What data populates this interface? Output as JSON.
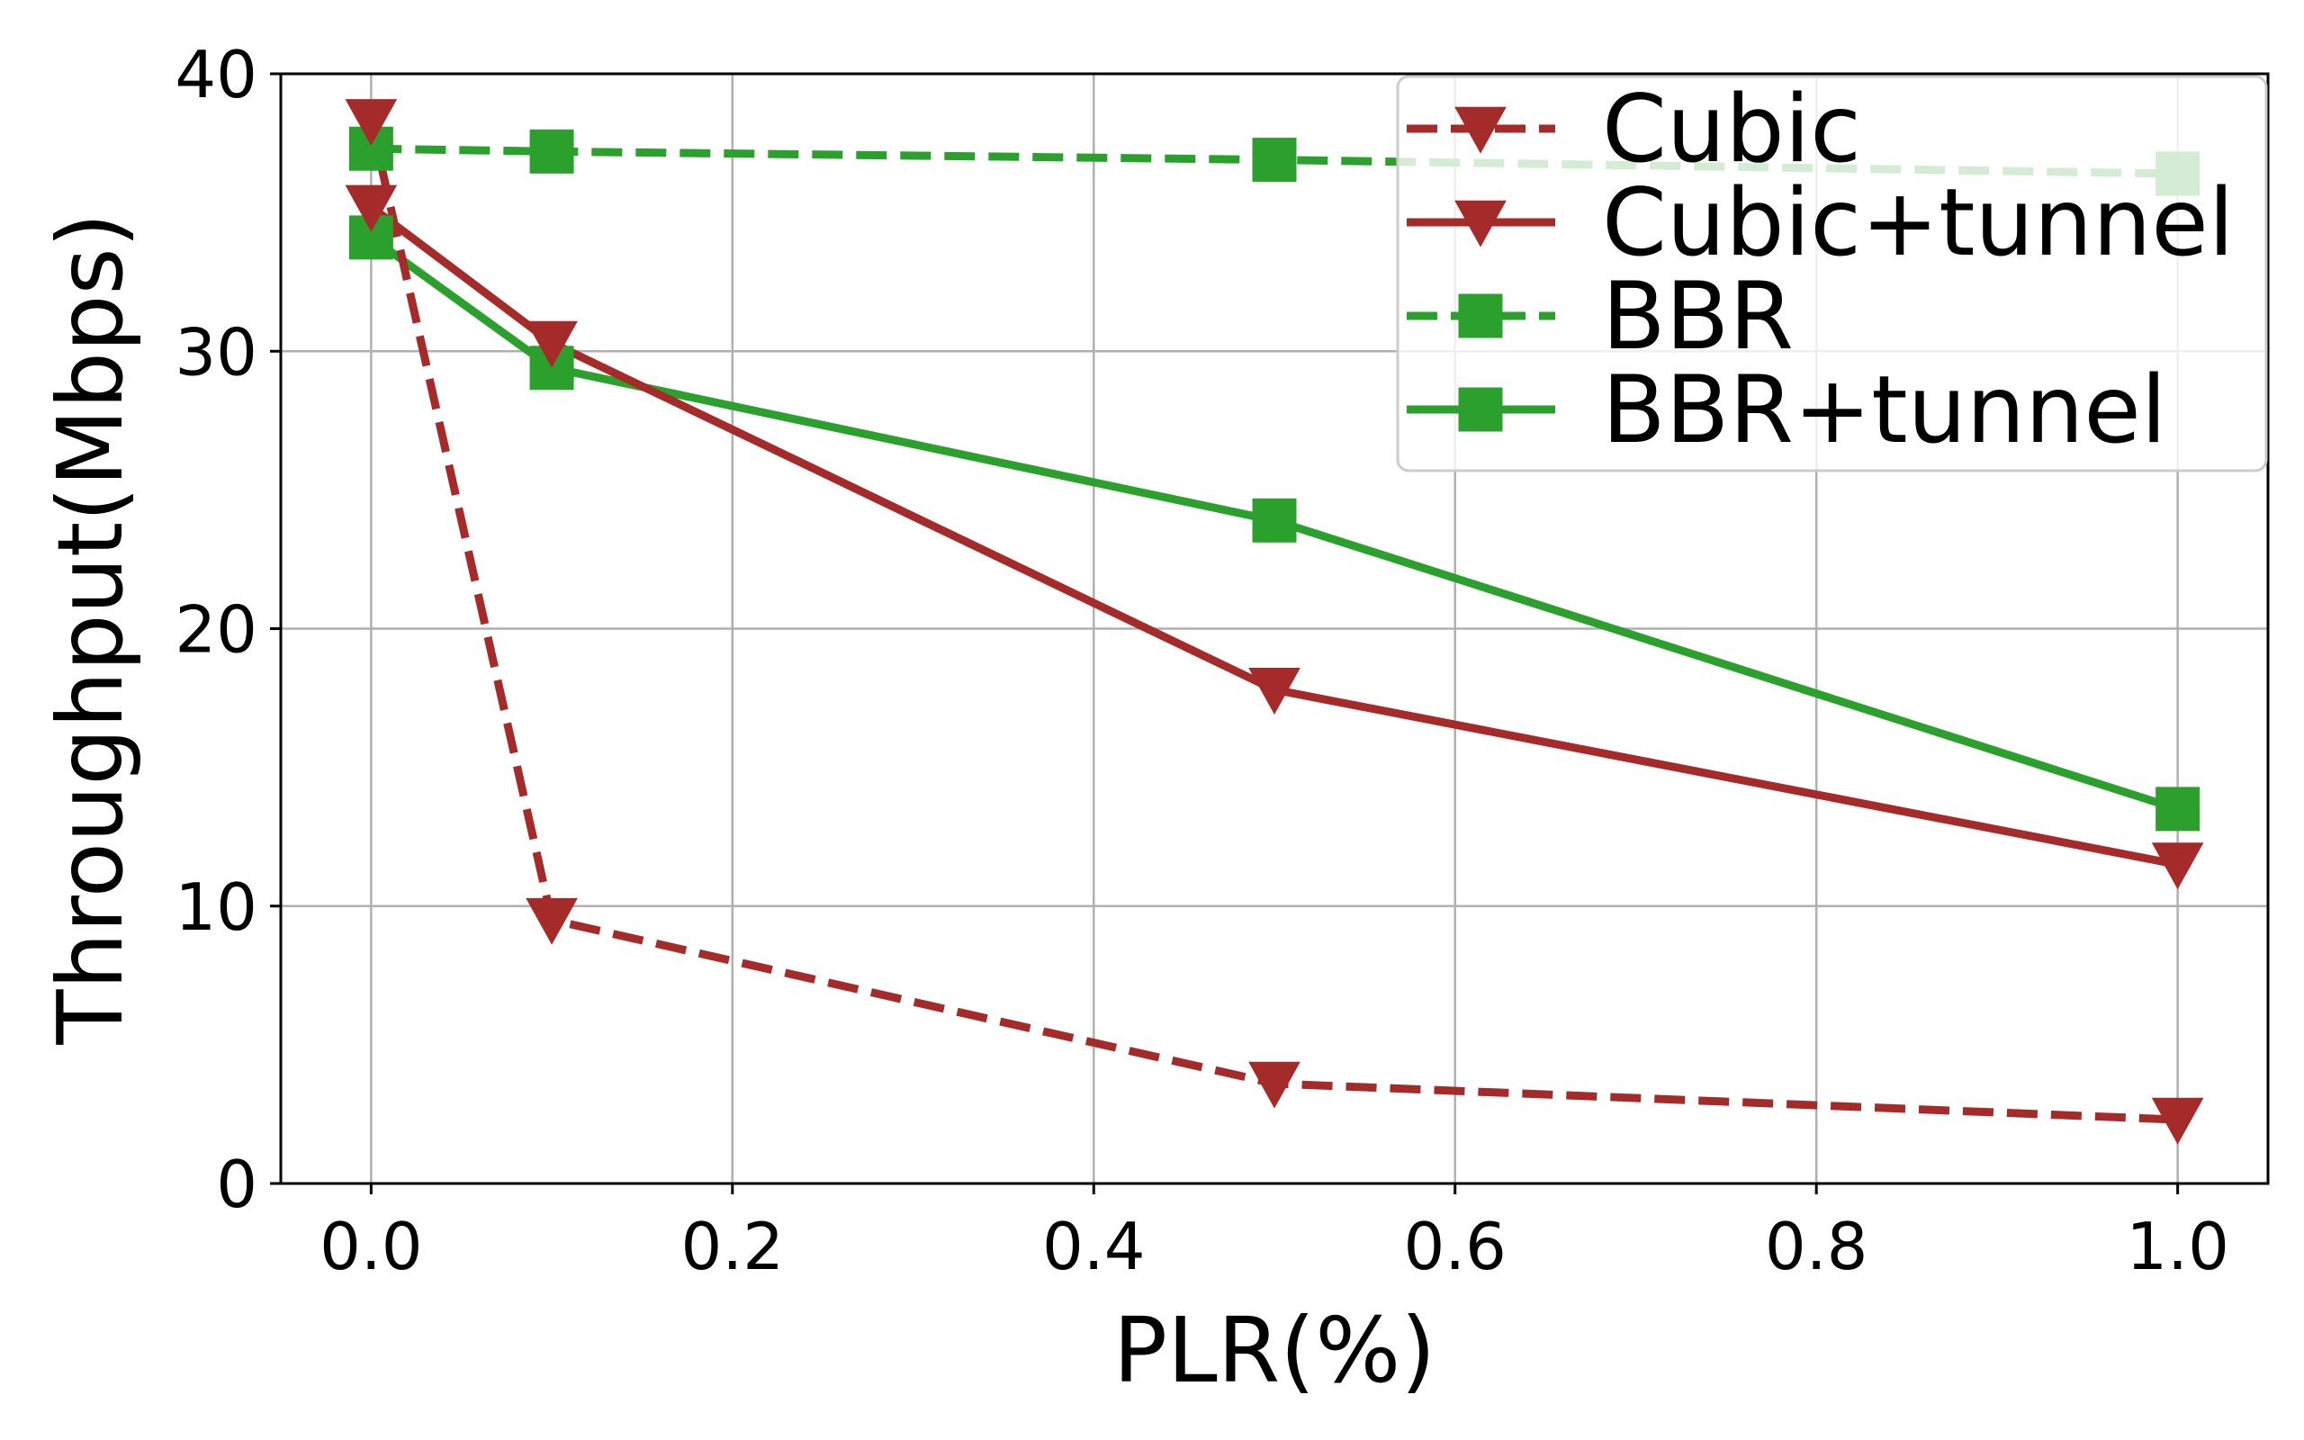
{
  "chart_data": {
    "type": "line",
    "title": "",
    "xlabel": "PLR(%)",
    "ylabel": "Throughput(Mbps)",
    "xlim": [
      -0.05,
      1.05
    ],
    "ylim": [
      0,
      40
    ],
    "xticks": [
      "0.0",
      "0.2",
      "0.4",
      "0.6",
      "0.8",
      "1.0"
    ],
    "yticks": [
      "0",
      "10",
      "20",
      "30",
      "40"
    ],
    "grid": true,
    "legend_position": "top-right",
    "x": [
      0.0,
      0.1,
      0.5,
      1.0
    ],
    "series": [
      {
        "name": "Cubic",
        "color": "#a52a2a",
        "line_style": "dashed",
        "marker": "triangle-down",
        "points": [
          {
            "x": 0.0,
            "y": 38.3
          },
          {
            "x": 0.1,
            "y": 9.5
          },
          {
            "x": 0.5,
            "y": 3.6
          },
          {
            "x": 1.0,
            "y": 2.3
          }
        ]
      },
      {
        "name": "Cubic+tunnel",
        "color": "#a52a2a",
        "line_style": "solid",
        "marker": "triangle-down",
        "points": [
          {
            "x": 0.0,
            "y": 35.2
          },
          {
            "x": 0.1,
            "y": 30.3
          },
          {
            "x": 0.5,
            "y": 17.8
          },
          {
            "x": 1.0,
            "y": 11.5
          }
        ]
      },
      {
        "name": "BBR",
        "color": "#2ca02c",
        "line_style": "dashed",
        "marker": "square",
        "points": [
          {
            "x": 0.0,
            "y": 37.3
          },
          {
            "x": 0.1,
            "y": 37.2
          },
          {
            "x": 0.5,
            "y": 36.9
          },
          {
            "x": 1.0,
            "y": 36.4
          }
        ]
      },
      {
        "name": "BBR+tunnel",
        "color": "#2ca02c",
        "line_style": "solid",
        "marker": "square",
        "points": [
          {
            "x": 0.0,
            "y": 34.1
          },
          {
            "x": 0.1,
            "y": 29.4
          },
          {
            "x": 0.5,
            "y": 23.9
          },
          {
            "x": 1.0,
            "y": 13.5
          }
        ]
      }
    ]
  }
}
